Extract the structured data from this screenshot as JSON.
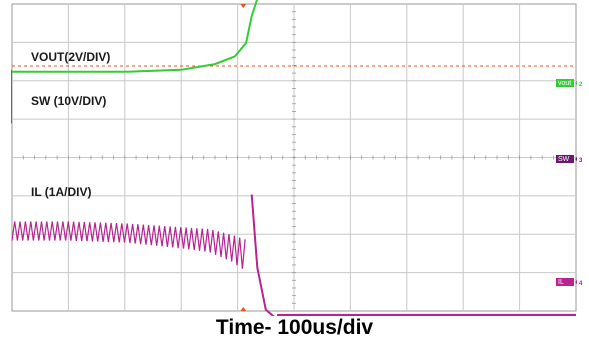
{
  "caption": "Time- 100us/div",
  "chart_data": {
    "type": "line",
    "title": "",
    "xlabel": "Time- 100us/div",
    "grid": true,
    "divisions": {
      "x": 10,
      "y": 8
    },
    "colors": {
      "VOUT": "#33cc33",
      "SW": "#6a1a6e",
      "SW_before": "#b58cb8",
      "IL": "#b8238f",
      "IL_before": "#cc7ab2",
      "marker": "#e8541c",
      "grid": "#c8c8c8"
    },
    "x_range_div": [
      0,
      10
    ],
    "series": [
      {
        "name": "VOUT(2V/DIV)",
        "end_tag": "vout",
        "channel": "2",
        "x": [
          0,
          1,
          2,
          3,
          3.6,
          3.95,
          4.15,
          4.25,
          4.35,
          4.5,
          10
        ],
        "y": [
          -0.15,
          -0.15,
          -0.15,
          -0.1,
          0.05,
          0.25,
          0.6,
          1.3,
          1.75,
          1.8,
          1.8
        ]
      },
      {
        "name": "SW (10V/DIV)",
        "end_tag": "SW",
        "channel": "3",
        "switching": {
          "transition_x": 4.3,
          "band_top": 2.3,
          "band_bottom": 0.9,
          "period_before": 0.095
        }
      },
      {
        "name": "IL (1A/DIV)",
        "end_tag": "IL",
        "channel": "4",
        "envelope_x": [
          0,
          1,
          2,
          3,
          3.5,
          3.9,
          4.1,
          4.2,
          4.25
        ],
        "envelope_top": [
          1.5,
          1.5,
          1.45,
          1.35,
          1.3,
          1.15,
          1.05,
          1.0,
          2.2
        ],
        "envelope_bottom": [
          1.0,
          1.0,
          0.95,
          0.8,
          0.7,
          0.45,
          0.25,
          0.05,
          1.3
        ],
        "after_x": [
          4.25,
          4.35,
          4.5,
          4.7,
          10
        ],
        "after_y": [
          2.2,
          0.3,
          -0.8,
          -1.05,
          -1.05
        ],
        "after_band_height": 0.28
      }
    ]
  }
}
